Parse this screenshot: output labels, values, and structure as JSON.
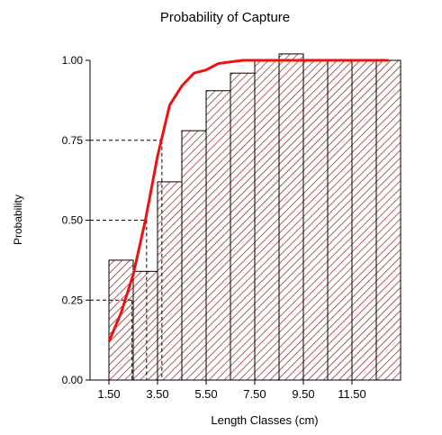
{
  "chart_data": {
    "type": "bar",
    "title": "Probability of Capture",
    "xlabel": "Length Classes (cm)",
    "ylabel": "Probability",
    "xlim": [
      0.75,
      13.25
    ],
    "ylim": [
      0,
      1.0
    ],
    "x_ticks": [
      "1.50",
      "3.50",
      "5.50",
      "7.50",
      "9.50",
      "11.50"
    ],
    "x_tick_values": [
      1.5,
      3.5,
      5.5,
      7.5,
      9.5,
      11.5
    ],
    "y_ticks": [
      "0.00",
      "0.25",
      "0.50",
      "0.75",
      "1.00"
    ],
    "y_tick_values": [
      0,
      0.25,
      0.5,
      0.75,
      1.0
    ],
    "bars": {
      "edges": [
        1.5,
        2.5,
        3.5,
        4.5,
        5.5,
        6.5,
        7.5,
        8.5,
        9.5,
        10.5,
        11.5,
        12.5,
        13.5
      ],
      "values": [
        0.375,
        0.34,
        0.62,
        0.78,
        0.905,
        0.96,
        1.0,
        1.02,
        1.0,
        1.0,
        1.0,
        1.0
      ],
      "fill_pattern": "diagonal-hatch",
      "hatch_color": "#8b1c1c"
    },
    "curve": {
      "color": "#ee1111",
      "x": [
        1.5,
        2.0,
        2.5,
        3.0,
        3.5,
        4.0,
        4.5,
        5.0,
        5.5,
        6.0,
        7.0,
        8.0,
        9.0,
        10.0,
        11.0,
        12.0,
        13.0
      ],
      "y": [
        0.12,
        0.21,
        0.33,
        0.5,
        0.7,
        0.86,
        0.92,
        0.96,
        0.97,
        0.99,
        1.0,
        1.0,
        1.0,
        1.0,
        1.0,
        1.0,
        1.0
      ]
    },
    "reference_lines": [
      {
        "prob": 0.25,
        "length": 2.45
      },
      {
        "prob": 0.5,
        "length": 3.05
      },
      {
        "prob": 0.75,
        "length": 3.68
      }
    ],
    "grid": false,
    "legend": "none"
  }
}
